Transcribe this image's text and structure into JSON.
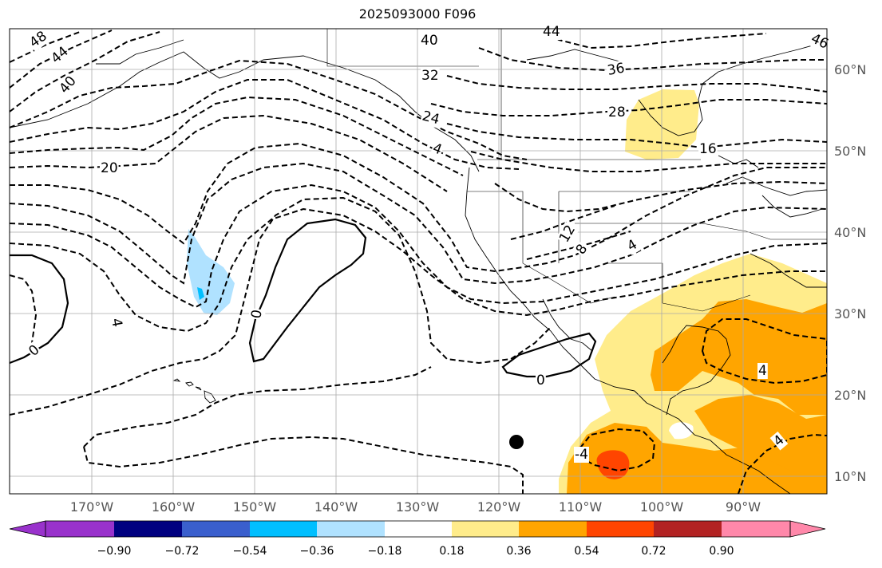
{
  "title": "2025093000 F096",
  "map": {
    "lat_labels": [
      {
        "value": 60,
        "text": "60°N"
      },
      {
        "value": 50,
        "text": "50°N"
      },
      {
        "value": 40,
        "text": "40°N"
      },
      {
        "value": 30,
        "text": "30°N"
      },
      {
        "value": 20,
        "text": "20°N"
      },
      {
        "value": 10,
        "text": "10°N"
      }
    ],
    "lon_labels": [
      {
        "value": -170,
        "text": "170°W"
      },
      {
        "value": -160,
        "text": "160°W"
      },
      {
        "value": -150,
        "text": "150°W"
      },
      {
        "value": -140,
        "text": "140°W"
      },
      {
        "value": -130,
        "text": "130°W"
      },
      {
        "value": -120,
        "text": "120°W"
      },
      {
        "value": -110,
        "text": "110°W"
      },
      {
        "value": -100,
        "text": "100°W"
      },
      {
        "value": -90,
        "text": "90°W"
      }
    ],
    "contour_labels": [
      "48",
      "44",
      "40",
      "20",
      "4",
      "0",
      "-4",
      "40",
      "32",
      "24",
      "4",
      "44",
      "36",
      "28",
      "46",
      "16",
      "12",
      "8",
      "4",
      "0",
      "4",
      "0",
      "4"
    ],
    "marker": "black-dot"
  },
  "colorbar": {
    "colors": [
      "#9932cc",
      "#000080",
      "#3a5fcd",
      "#00bfff",
      "#b0e2ff",
      "#ffffff",
      "#ffec8b",
      "#ffa500",
      "#ff4500",
      "#b22222",
      "#ff88aa"
    ],
    "ticks": [
      "−0.90",
      "−0.72",
      "−0.54",
      "−0.36",
      "−0.18",
      "0.18",
      "0.36",
      "0.54",
      "0.72",
      "0.90"
    ]
  }
}
